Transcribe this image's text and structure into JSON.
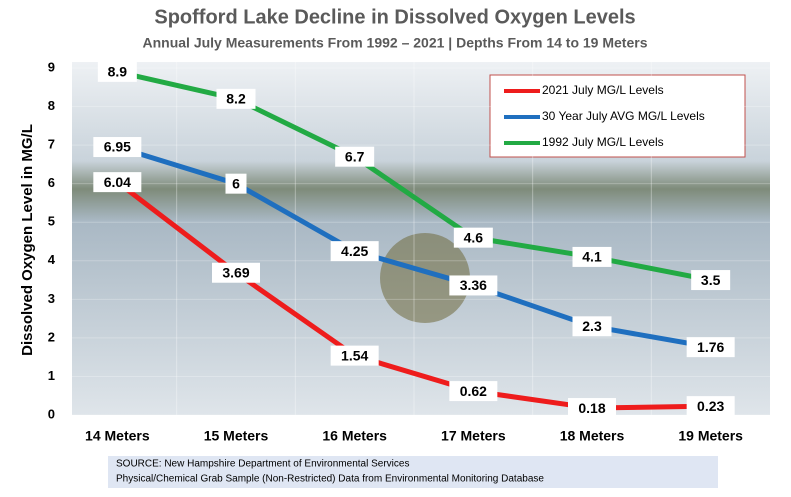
{
  "chart_data": {
    "type": "line",
    "title": "Spofford Lake Decline in Dissolved Oxygen Levels",
    "subtitle": "Annual July Measurements From 1992 – 2021 | Depths From 14 to 19 Meters",
    "y_label": "Dissolved Oxygen Level in MG/L",
    "categories": [
      "14 Meters",
      "15 Meters",
      "16 Meters",
      "17 Meters",
      "18 Meters",
      "19 Meters"
    ],
    "series": [
      {
        "name": "2021 July  MG/L Levels",
        "color": "#ee1c1c",
        "values": [
          6.04,
          3.69,
          1.54,
          0.62,
          0.18,
          0.23
        ]
      },
      {
        "name": "30 Year July AVG MG/L Levels",
        "color": "#1f6fbf",
        "values": [
          6.95,
          6,
          4.25,
          3.36,
          2.3,
          1.76
        ]
      },
      {
        "name": "1992 July  MG/L Levels",
        "color": "#22aa44",
        "values": [
          8.9,
          8.2,
          6.7,
          4.6,
          4.1,
          3.5
        ]
      }
    ],
    "ylim": [
      0,
      9
    ],
    "yticks": [
      0,
      1,
      2,
      3,
      4,
      5,
      6,
      7,
      8,
      9
    ],
    "grid": true,
    "legend": "upper right",
    "source": [
      "SOURCE: New Hampshire Department of Environmental Services",
      "Physical/Chemical Grab Sample (Non-Restricted) Data from Environmental Monitoring Database"
    ]
  }
}
